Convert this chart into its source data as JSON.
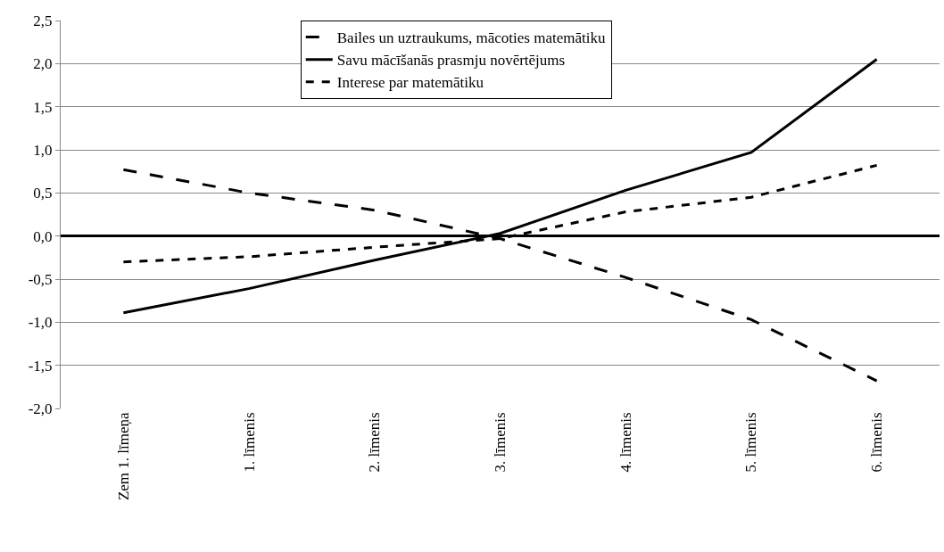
{
  "chart_data": {
    "type": "line",
    "categories": [
      "Zem 1. līmeņa",
      "1. līmenis",
      "2. līmenis",
      "3. līmenis",
      "4. līmenis",
      "5. līmenis",
      "6. līmenis"
    ],
    "series": [
      {
        "name": "Bailes un uztraukums, mācoties matemātiku",
        "color": "#000000",
        "line_style": "dashed",
        "values": [
          0.77,
          0.5,
          0.3,
          -0.03,
          -0.48,
          -0.97,
          -1.68
        ]
      },
      {
        "name": "Savu mācīšanās prasmju novērtējums",
        "color": "#000000",
        "line_style": "solid",
        "values": [
          -0.89,
          -0.61,
          -0.28,
          0.03,
          0.53,
          0.97,
          2.05
        ]
      },
      {
        "name": "Interese par matemātiku",
        "color": "#000000",
        "line_style": "dotted",
        "values": [
          -0.3,
          -0.24,
          -0.13,
          -0.03,
          0.28,
          0.45,
          0.82
        ]
      }
    ],
    "ylim": [
      -2,
      2.5
    ],
    "yticks": [
      {
        "value": -2,
        "label": "-2,0"
      },
      {
        "value": -1.5,
        "label": "-1,5"
      },
      {
        "value": -1,
        "label": "-1,0"
      },
      {
        "value": -0.5,
        "label": "-0,5"
      },
      {
        "value": 0,
        "label": "0,0"
      },
      {
        "value": 0.5,
        "label": "0,5"
      },
      {
        "value": 1,
        "label": "1,0"
      },
      {
        "value": 1.5,
        "label": "1,5"
      },
      {
        "value": 2,
        "label": "2,0"
      },
      {
        "value": 2.5,
        "label": "2,5"
      }
    ],
    "grid": "y",
    "legend": "top",
    "marker": "none"
  }
}
